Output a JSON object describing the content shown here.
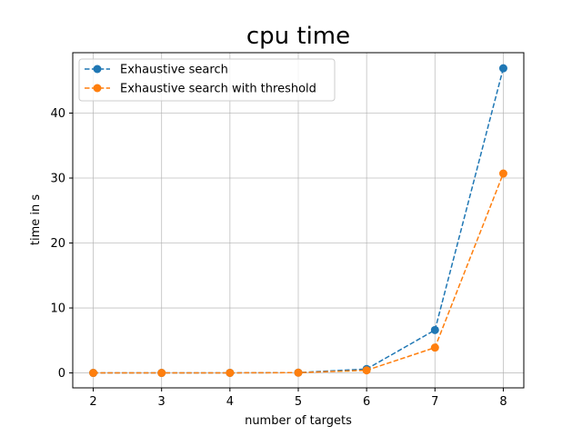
{
  "chart_data": {
    "type": "line",
    "title": "cpu time",
    "xlabel": "number of targets",
    "ylabel": "time in s",
    "x": [
      2,
      3,
      4,
      5,
      6,
      7,
      8
    ],
    "xlim": [
      1.7,
      8.3
    ],
    "ylim": [
      -2.3,
      49.3
    ],
    "xticks": [
      2,
      3,
      4,
      5,
      6,
      7,
      8
    ],
    "yticks": [
      0,
      10,
      20,
      30,
      40
    ],
    "grid": true,
    "legend_position": "top-left",
    "series": [
      {
        "name": "Exhaustive search",
        "color": "#1f77b4",
        "linestyle": "dashed",
        "marker": "circle",
        "values": [
          0.0,
          0.0,
          0.01,
          0.05,
          0.6,
          6.6,
          46.9
        ]
      },
      {
        "name": "Exhaustive search with threshold",
        "color": "#ff7f0e",
        "linestyle": "dashed",
        "marker": "circle",
        "values": [
          0.0,
          0.0,
          0.01,
          0.04,
          0.4,
          3.9,
          30.7
        ]
      }
    ]
  }
}
